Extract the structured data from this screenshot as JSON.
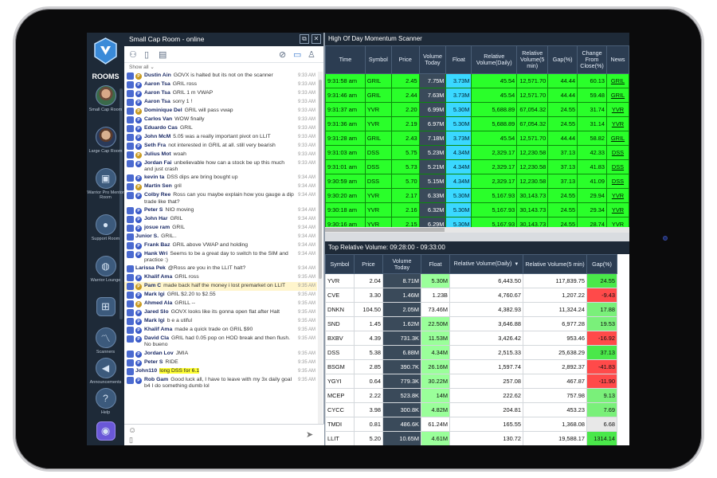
{
  "sidebar": {
    "rooms_label": "ROOMS",
    "items": [
      {
        "label": "Small Cap Room"
      },
      {
        "label": "Large Cap Room"
      },
      {
        "label": "Warrior Pro Mentor Room"
      },
      {
        "label": "Support Room"
      },
      {
        "label": "Warrior Lounge"
      },
      {
        "label": ""
      },
      {
        "label": "Scanners"
      },
      {
        "label": "Announcements"
      },
      {
        "label": "Help"
      }
    ]
  },
  "chat": {
    "title": "Small Cap Room - online",
    "show_all": "Show all",
    "messages": [
      {
        "name": "Dustin Ain",
        "text": "GOVX is halted but its not on the scanner",
        "time": "9:33 AM",
        "badge": "gold"
      },
      {
        "name": "Aaron Tsa",
        "text": "GRIL ross",
        "time": "9:33 AM",
        "badge": "blue"
      },
      {
        "name": "Aaron Tsa",
        "text": "GRIL 1 m VWAP",
        "time": "9:33 AM",
        "badge": "blue"
      },
      {
        "name": "Aaron Tsa",
        "text": "sorry 1 !",
        "time": "9:33 AM",
        "badge": "blue"
      },
      {
        "name": "Dominique Del",
        "text": "GRIL will pass vwap",
        "time": "9:33 AM",
        "badge": "gold"
      },
      {
        "name": "Carlos Van",
        "text": "WOW finally",
        "time": "9:33 AM",
        "badge": "blue"
      },
      {
        "name": "Eduardo Cas",
        "text": "GRIL",
        "time": "9:33 AM",
        "badge": "blue"
      },
      {
        "name": "John McM",
        "text": "5.05 was a really important pivot on LLIT",
        "time": "9:33 AM",
        "badge": "blue"
      },
      {
        "name": "Seth Fra",
        "text": "not interested in GRIL at all. still very bearish",
        "time": "9:33 AM",
        "badge": "blue"
      },
      {
        "name": "Julius Mot",
        "text": "woah",
        "time": "9:33 AM",
        "badge": "gold"
      },
      {
        "name": "Jordan Fai",
        "text": "unbelievable how can a stock be up this much and just crash",
        "time": "9:33 AM",
        "badge": "blue"
      },
      {
        "name": "kevin ta",
        "text": "DSS dips are bring bought up",
        "time": "9:34 AM",
        "badge": "blue"
      },
      {
        "name": "Martin Sen",
        "text": "gril",
        "time": "9:34 AM",
        "badge": "gold"
      },
      {
        "name": "Colby Ree",
        "text": "Ross can you maybe explain how you gauge a dip trade like that?",
        "time": "9:34 AM",
        "badge": "blue"
      },
      {
        "name": "Peter S",
        "text": "NIO moving",
        "time": "9:34 AM",
        "badge": "blue"
      },
      {
        "name": "John Har",
        "text": "GRIL",
        "time": "9:34 AM",
        "badge": "blue"
      },
      {
        "name": "josue ram",
        "text": "GRIL",
        "time": "9:34 AM",
        "badge": "blue"
      },
      {
        "name": "Junior S.",
        "text": "GRIL..",
        "time": "9:34 AM",
        "badge": "none"
      },
      {
        "name": "Frank Baz",
        "text": "GRIL above VWAP and holding",
        "time": "9:34 AM",
        "badge": "blue"
      },
      {
        "name": "Hank Wri",
        "text": "Seems to be a great day to switch to the SIM and practice :)",
        "time": "9:34 AM",
        "badge": "blue"
      },
      {
        "name": "Larissa Pek",
        "text": "@Ross are you in the LLIT halt?",
        "time": "9:34 AM",
        "badge": "none"
      },
      {
        "name": "Khalif Ama",
        "text": "GRIL ross",
        "time": "9:35 AM",
        "badge": "blue"
      },
      {
        "name": "Pam C",
        "text": "made back half the money i lost premarket on LLIT",
        "time": "9:35 AM",
        "badge": "gold",
        "highlight": true
      },
      {
        "name": "Mark Igi",
        "text": "GRIL $2.20 to $2.55",
        "time": "9:35 AM",
        "badge": "blue"
      },
      {
        "name": "Ahmed Ala",
        "text": "GRILL --",
        "time": "9:35 AM",
        "badge": "gold"
      },
      {
        "name": "Jared Slo",
        "text": "GOVX looks like its gonna open flat after Halt",
        "time": "9:35 AM",
        "badge": "blue"
      },
      {
        "name": "Mark Igi",
        "text": "b e a utiful",
        "time": "9:35 AM",
        "badge": "blue"
      },
      {
        "name": "Khalif Ama",
        "text": "made a quick trade on GRIL $90",
        "time": "9:35 AM",
        "badge": "blue"
      },
      {
        "name": "David Cla",
        "text": "GRIL had 0.05 pop on HOD break and then flush. No bueno",
        "time": "9:35 AM",
        "badge": "blue"
      },
      {
        "name": "Jordan Lov",
        "text": "JMIA",
        "time": "9:35 AM",
        "badge": "blue"
      },
      {
        "name": "Peter S",
        "text": "RIDE",
        "time": "9:35 AM",
        "badge": "blue"
      },
      {
        "name": "John110",
        "text": "long DSS for 6.1",
        "time": "9:35 AM",
        "badge": "none",
        "yellow": true
      },
      {
        "name": "Rob Gam",
        "text": "Good luck all, I have to leave with my 3x daily goal b4 I do something dumb lol",
        "time": "9:35 AM",
        "badge": "blue"
      }
    ]
  },
  "scanner1": {
    "title": "High Of Day Momentum Scanner",
    "columns": [
      "Time",
      "Symbol",
      "Price",
      "Volume Today",
      "Float",
      "Relative Volume(Daily)",
      "Relative Volume(5 min)",
      "Gap(%)",
      "Change From Close(%)",
      "News"
    ],
    "rows": [
      [
        "9:31:58 am",
        "GRIL",
        "2.45",
        "7.75M",
        "3.73M",
        "45.54",
        "12,571.70",
        "44.44",
        "60.13",
        "GRIL"
      ],
      [
        "9:31:46 am",
        "GRIL",
        "2.44",
        "7.63M",
        "3.73M",
        "45.54",
        "12,571.70",
        "44.44",
        "59.48",
        "GRIL"
      ],
      [
        "9:31:37 am",
        "YVR",
        "2.20",
        "6.99M",
        "5.30M",
        "5,688.89",
        "67,054.32",
        "24.55",
        "31.74",
        "YVR"
      ],
      [
        "9:31:36 am",
        "YVR",
        "2.19",
        "6.97M",
        "5.30M",
        "5,688.89",
        "67,054.32",
        "24.55",
        "31.14",
        "YVR"
      ],
      [
        "9:31:28 am",
        "GRIL",
        "2.43",
        "7.18M",
        "3.73M",
        "45.54",
        "12,571.70",
        "44.44",
        "58.82",
        "GRIL"
      ],
      [
        "9:31:03 am",
        "DSS",
        "5.75",
        "5.23M",
        "4.34M",
        "2,329.17",
        "12,230.58",
        "37.13",
        "42.33",
        "DSS"
      ],
      [
        "9:31:01 am",
        "DSS",
        "5.73",
        "5.21M",
        "4.34M",
        "2,329.17",
        "12,230.58",
        "37.13",
        "41.83",
        "DSS"
      ],
      [
        "9:30:59 am",
        "DSS",
        "5.70",
        "5.15M",
        "4.34M",
        "2,329.17",
        "12,230.58",
        "37.13",
        "41.09",
        "DSS"
      ],
      [
        "9:30:20 am",
        "YVR",
        "2.17",
        "6.33M",
        "5.30M",
        "5,167.93",
        "30,143.73",
        "24.55",
        "29.94",
        "YVR"
      ],
      [
        "9:30:18 am",
        "YVR",
        "2.16",
        "6.32M",
        "5.30M",
        "5,167.93",
        "30,143.73",
        "24.55",
        "29.34",
        "YVR"
      ],
      [
        "9:30:16 am",
        "YVR",
        "2.15",
        "6.29M",
        "5.30M",
        "5,167.93",
        "30,143.73",
        "24.55",
        "28.74",
        "YVR"
      ]
    ]
  },
  "scanner2": {
    "title": "Top Relative Volume: 09:28:00 - 09:33:00",
    "columns": [
      "Symbol",
      "Price",
      "Volume Today",
      "Float",
      "Relative Volume(Daily)",
      "Relative Volume(5 min)",
      "Gap(%)"
    ],
    "rows": [
      [
        "YVR",
        "2.04",
        "8.71M",
        "5.30M",
        "6,443.50",
        "117,839.75",
        "24.55"
      ],
      [
        "CVE",
        "3.30",
        "1.46M",
        "1.23B",
        "4,760.67",
        "1,207.22",
        "-9.43"
      ],
      [
        "DNKN",
        "104.50",
        "2.05M",
        "73.46M",
        "4,382.93",
        "11,324.24",
        "17.88"
      ],
      [
        "SND",
        "1.45",
        "1.62M",
        "22.50M",
        "3,646.88",
        "6,977.28",
        "19.53"
      ],
      [
        "BXBV",
        "4.39",
        "731.3K",
        "11.53M",
        "3,426.42",
        "953.46",
        "-16.92"
      ],
      [
        "DSS",
        "5.38",
        "6.88M",
        "4.34M",
        "2,515.33",
        "25,638.29",
        "37.13"
      ],
      [
        "BSGM",
        "2.85",
        "390.7K",
        "26.16M",
        "1,597.74",
        "2,892.37",
        "-41.83"
      ],
      [
        "YGYI",
        "0.64",
        "779.3K",
        "30.22M",
        "257.08",
        "467.87",
        "-11.90"
      ],
      [
        "MCEP",
        "2.22",
        "523.8K",
        "14M",
        "222.62",
        "757.98",
        "9.13"
      ],
      [
        "CYCC",
        "3.98",
        "300.8K",
        "4.82M",
        "204.81",
        "453.23",
        "7.69"
      ],
      [
        "TMDI",
        "0.81",
        "486.6K",
        "61.24M",
        "165.55",
        "1,368.08",
        "6.68"
      ],
      [
        "LLIT",
        "5.20",
        "10.65M",
        "4.61M",
        "130.72",
        "19,588.17",
        "1314.14"
      ]
    ]
  },
  "colors": {
    "green_cell": "#2aff2a",
    "float_cyan": "#3ad8ff",
    "header_bg": "#2c3d52",
    "title_bg": "#1e2a38",
    "negative": "#ff4a4a"
  }
}
